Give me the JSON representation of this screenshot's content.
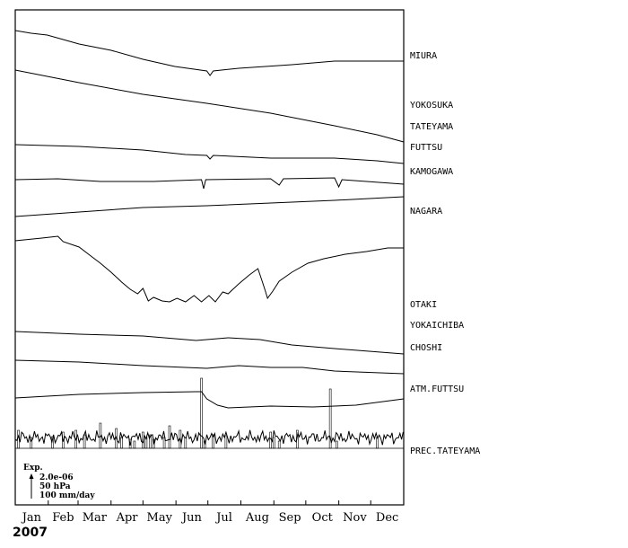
{
  "chart_data": {
    "type": "line",
    "title": "",
    "year": "2007",
    "months": [
      "Jan",
      "Feb",
      "Mar",
      "Apr",
      "May",
      "Jun",
      "Jul",
      "Aug",
      "Sep",
      "Oct",
      "Nov",
      "Dec"
    ],
    "legend": {
      "title": "Exp.",
      "lines": [
        "2.0e-06",
        "50 hPa",
        "100 mm/day"
      ]
    },
    "series": [
      {
        "name": "MIURA",
        "values": [
          [
            0,
            -23
          ],
          [
            15,
            -26
          ],
          [
            30,
            -28
          ],
          [
            60,
            -38
          ],
          [
            90,
            -45
          ],
          [
            120,
            -55
          ],
          [
            150,
            -63
          ],
          [
            180,
            -68
          ],
          [
            183,
            -73
          ],
          [
            186,
            -68
          ],
          [
            210,
            -65
          ],
          [
            260,
            -61
          ],
          [
            300,
            -57
          ],
          [
            365,
            -57
          ]
        ]
      },
      {
        "name": "YOKOSUKA",
        "values": [
          [
            0,
            -67
          ],
          [
            60,
            -81
          ],
          [
            120,
            -94
          ],
          [
            180,
            -104
          ],
          [
            240,
            -115
          ],
          [
            300,
            -129
          ],
          [
            340,
            -139
          ],
          [
            365,
            -147
          ]
        ]
      },
      {
        "name": "TATEYAMA",
        "values": [
          [
            0,
            -150
          ],
          [
            60,
            -152
          ],
          [
            120,
            -156
          ],
          [
            160,
            -161
          ],
          [
            180,
            -162
          ],
          [
            183,
            -166
          ],
          [
            186,
            -162
          ],
          [
            240,
            -165
          ],
          [
            300,
            -165
          ],
          [
            340,
            -168
          ],
          [
            365,
            -171
          ]
        ]
      },
      {
        "name": "FUTTSU",
        "values": [
          [
            0,
            -189
          ],
          [
            40,
            -188
          ],
          [
            80,
            -191
          ],
          [
            130,
            -191
          ],
          [
            175,
            -189
          ],
          [
            177,
            -199
          ],
          [
            179,
            -189
          ],
          [
            240,
            -188
          ],
          [
            248,
            -195
          ],
          [
            252,
            -188
          ],
          [
            300,
            -187
          ],
          [
            304,
            -197
          ],
          [
            307,
            -189
          ],
          [
            365,
            -194
          ]
        ]
      },
      {
        "name": "KAMOGAWA",
        "values": [
          [
            0,
            -230
          ],
          [
            60,
            -225
          ],
          [
            120,
            -220
          ],
          [
            180,
            -218
          ],
          [
            240,
            -215
          ],
          [
            300,
            -212
          ],
          [
            365,
            -208
          ]
        ]
      },
      {
        "name": "NAGARA",
        "values": [
          [
            0,
            -257
          ],
          [
            25,
            -254
          ],
          [
            40,
            -252
          ],
          [
            45,
            -258
          ],
          [
            60,
            -264
          ],
          [
            70,
            -273
          ],
          [
            80,
            -282
          ],
          [
            90,
            -292
          ],
          [
            100,
            -303
          ],
          [
            108,
            -311
          ],
          [
            115,
            -316
          ],
          [
            120,
            -310
          ],
          [
            125,
            -324
          ],
          [
            130,
            -320
          ],
          [
            138,
            -324
          ],
          [
            145,
            -325
          ],
          [
            152,
            -321
          ],
          [
            160,
            -325
          ],
          [
            168,
            -318
          ],
          [
            175,
            -325
          ],
          [
            182,
            -318
          ],
          [
            188,
            -325
          ],
          [
            195,
            -314
          ],
          [
            200,
            -316
          ],
          [
            210,
            -305
          ],
          [
            220,
            -295
          ],
          [
            228,
            -288
          ],
          [
            232,
            -302
          ],
          [
            235,
            -313
          ],
          [
            237,
            -321
          ],
          [
            242,
            -313
          ],
          [
            248,
            -302
          ],
          [
            260,
            -292
          ],
          [
            275,
            -282
          ],
          [
            290,
            -277
          ],
          [
            310,
            -272
          ],
          [
            330,
            -269
          ],
          [
            350,
            -265
          ],
          [
            365,
            -265
          ]
        ]
      },
      {
        "name": "OTAKI",
        "values": [
          [
            0,
            -358
          ],
          [
            60,
            -361
          ],
          [
            120,
            -363
          ],
          [
            170,
            -368
          ],
          [
            200,
            -365
          ],
          [
            230,
            -367
          ],
          [
            260,
            -373
          ],
          [
            300,
            -377
          ],
          [
            365,
            -383
          ]
        ]
      },
      {
        "name": "YOKAICHIBA",
        "values": [
          [
            0,
            -390
          ],
          [
            60,
            -392
          ],
          [
            120,
            -396
          ],
          [
            180,
            -399
          ],
          [
            210,
            -396
          ],
          [
            240,
            -398
          ],
          [
            270,
            -398
          ],
          [
            300,
            -402
          ],
          [
            365,
            -405
          ]
        ]
      },
      {
        "name": "CHOSHI",
        "values": [
          [
            0,
            -432
          ],
          [
            60,
            -428
          ],
          [
            120,
            -426
          ],
          [
            170,
            -425
          ],
          [
            175,
            -425
          ],
          [
            180,
            -433
          ],
          [
            190,
            -440
          ],
          [
            200,
            -443
          ],
          [
            240,
            -441
          ],
          [
            280,
            -442
          ],
          [
            320,
            -440
          ],
          [
            365,
            -433
          ]
        ]
      },
      {
        "name": "ATM.FUTTSU",
        "values": [
          [
            0,
            -476
          ],
          [
            50,
            -476
          ],
          [
            100,
            -476
          ],
          [
            150,
            -477
          ],
          [
            200,
            -477
          ],
          [
            250,
            -476
          ],
          [
            300,
            -476
          ],
          [
            365,
            -476
          ]
        ]
      },
      {
        "name": "PREC.TATEYAMA",
        "values": [
          [
            3,
            20
          ],
          [
            15,
            12
          ],
          [
            35,
            13
          ],
          [
            45,
            18
          ],
          [
            57,
            20
          ],
          [
            65,
            15
          ],
          [
            80,
            28
          ],
          [
            95,
            22
          ],
          [
            100,
            12
          ],
          [
            108,
            10
          ],
          [
            112,
            8
          ],
          [
            120,
            18
          ],
          [
            123,
            12
          ],
          [
            127,
            15
          ],
          [
            130,
            10
          ],
          [
            140,
            12
          ],
          [
            145,
            25
          ],
          [
            155,
            20
          ],
          [
            160,
            12
          ],
          [
            175,
            78
          ],
          [
            178,
            8
          ],
          [
            186,
            15
          ],
          [
            198,
            14
          ],
          [
            240,
            18
          ],
          [
            243,
            12
          ],
          [
            248,
            8
          ],
          [
            265,
            20
          ],
          [
            296,
            66
          ],
          [
            302,
            8
          ],
          [
            340,
            12
          ]
        ]
      }
    ]
  }
}
